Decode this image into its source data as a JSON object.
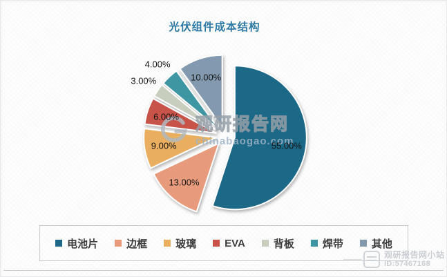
{
  "title": "光伏组件成本结构",
  "chart_data": {
    "type": "pie",
    "title": "光伏组件成本结构",
    "unit": "%",
    "exploded": true,
    "start_angle_deg": 0,
    "clockwise": true,
    "legend_position": "bottom",
    "series": [
      {
        "key": "cell",
        "name": "电池片",
        "value": 55,
        "label": "55.00%",
        "color": "#1f6787",
        "label_placement": "inside"
      },
      {
        "key": "frame",
        "name": "边框",
        "value": 13,
        "label": "13.00%",
        "color": "#e89b7c",
        "label_placement": "inside"
      },
      {
        "key": "glass",
        "name": "玻璃",
        "value": 9,
        "label": "9.00%",
        "color": "#e9ae5e",
        "label_placement": "inside"
      },
      {
        "key": "eva",
        "name": "EVA",
        "value": 6,
        "label": "6.00%",
        "color": "#c75348",
        "label_placement": "inside"
      },
      {
        "key": "backsheet",
        "name": "背板",
        "value": 3,
        "label": "3.00%",
        "color": "#c7cebd",
        "label_placement": "outside"
      },
      {
        "key": "ribbon",
        "name": "焊带",
        "value": 4,
        "label": "4.00%",
        "color": "#3d96a2",
        "label_placement": "outside"
      },
      {
        "key": "other",
        "name": "其他",
        "value": 10,
        "label": "10.00%",
        "color": "#8299af",
        "label_placement": "inside"
      }
    ]
  },
  "watermark_center": {
    "brand": "观研报告网",
    "url": "chinabaogao.com"
  },
  "watermark_corner": {
    "site": "观研报告网小站",
    "id": "ID:57467168"
  },
  "colors": {
    "title": "#2e79a4",
    "label_text": "#141414",
    "legend_text": "#3c3c3c"
  }
}
